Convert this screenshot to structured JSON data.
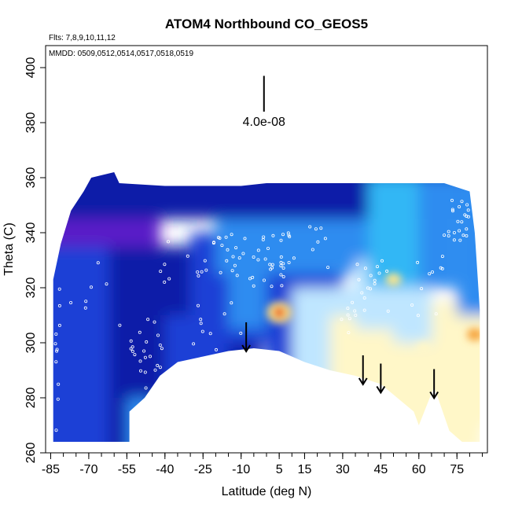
{
  "chart_data": {
    "type": "heatmap",
    "title": "ATOM4 Northbound CO_GEOS5",
    "flights_note": "Flts: 7,8,9,10,11,12",
    "dates_note": "MMDD: 0509,0512,0514,0517,0518,0519",
    "xlabel": "Latitude (deg N)",
    "ylabel": "Theta (C)",
    "xlim": [
      -87,
      87
    ],
    "ylim": [
      260,
      408
    ],
    "xticks": [
      -85,
      -70,
      -55,
      -40,
      -25,
      -10,
      5,
      15,
      30,
      45,
      60,
      75
    ],
    "yticks": [
      260,
      280,
      300,
      320,
      340,
      360,
      380,
      400
    ],
    "scale_bar": {
      "label": "4.0e-08",
      "x": -1,
      "y_top": 397,
      "y_bottom": 384
    },
    "colormap": [
      "#5a1fc8",
      "#0a1aa8",
      "#1a3fd6",
      "#2f8cf0",
      "#33b7f5",
      "#bfe6ff",
      "#fff7c8",
      "#fde68a",
      "#f6a33a",
      "#e0261a"
    ],
    "field_outline": [
      [
        -84,
        264
      ],
      [
        -84,
        323
      ],
      [
        -81,
        336
      ],
      [
        -77,
        348
      ],
      [
        -72,
        355
      ],
      [
        -69,
        360
      ],
      [
        -60,
        362
      ],
      [
        -58,
        358
      ],
      [
        -40,
        357
      ],
      [
        -10,
        357
      ],
      [
        0,
        358
      ],
      [
        10,
        358
      ],
      [
        30,
        358
      ],
      [
        50,
        358
      ],
      [
        70,
        358
      ],
      [
        80,
        355
      ],
      [
        82,
        340
      ],
      [
        84,
        312
      ],
      [
        84,
        264
      ],
      [
        77,
        264
      ],
      [
        72,
        268
      ],
      [
        66,
        284
      ],
      [
        60,
        270
      ],
      [
        58,
        275
      ],
      [
        45,
        285
      ],
      [
        35,
        288
      ],
      [
        25,
        290
      ],
      [
        15,
        293
      ],
      [
        5,
        297
      ],
      [
        -5,
        298
      ],
      [
        -15,
        297
      ],
      [
        -25,
        295
      ],
      [
        -35,
        293
      ],
      [
        -42,
        288
      ],
      [
        -48,
        280
      ],
      [
        -54,
        275
      ],
      [
        -54,
        264
      ]
    ],
    "hotspots": [
      {
        "lon": 5,
        "theta": 311,
        "value": 1.0
      },
      {
        "lon": 50,
        "theta": 323,
        "value": 0.65
      },
      {
        "lon": 82,
        "theta": 303,
        "value": 0.75
      },
      {
        "lon": 45,
        "theta": 295,
        "value": 0.55
      },
      {
        "lon": 62,
        "theta": 298,
        "value": 0.55
      }
    ],
    "trajectory_arrows": [
      {
        "lat": -8,
        "theta_top": 304,
        "theta_bottom": 298
      },
      {
        "lat": 38,
        "theta_top": 292,
        "theta_bottom": 286
      },
      {
        "lat": 45,
        "theta_top": 289,
        "theta_bottom": 283
      },
      {
        "lat": 66,
        "theta_top": 287,
        "theta_bottom": 281
      }
    ]
  }
}
